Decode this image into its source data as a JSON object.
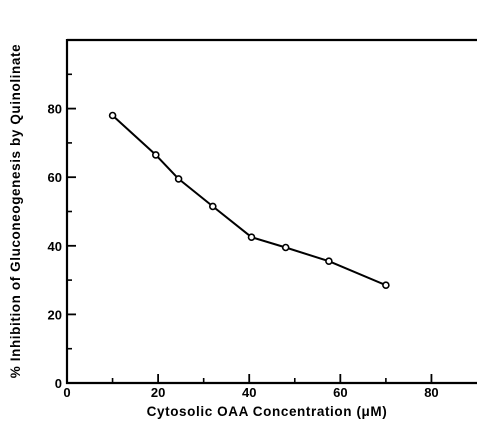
{
  "chart_data": {
    "type": "line",
    "title": "",
    "xlabel": "Cytosolic  OAA  Concentration  (μM)",
    "ylabel": "%  Inhibition  of  Gluconeogenesis  by  Quinolinate",
    "xlim": [
      0,
      90
    ],
    "ylim": [
      0,
      100
    ],
    "x_ticks": [
      0,
      20,
      40,
      60,
      80
    ],
    "x_tick_labels": [
      "0",
      "20",
      "40",
      "60",
      "80"
    ],
    "y_ticks": [
      0,
      20,
      40,
      60,
      80
    ],
    "y_tick_labels": [
      "0",
      "20",
      "40",
      "60",
      "80"
    ],
    "grid": false,
    "series": [
      {
        "marker": "open-circle",
        "x": [
          10,
          19.5,
          24.5,
          32,
          40.5,
          48,
          57.5,
          70
        ],
        "y": [
          78,
          66.5,
          59.5,
          51.5,
          42.5,
          39.5,
          35.5,
          28.5
        ]
      }
    ],
    "colors": {
      "line": "#000000",
      "marker_fill": "#ffffff",
      "axis": "#000000"
    }
  }
}
